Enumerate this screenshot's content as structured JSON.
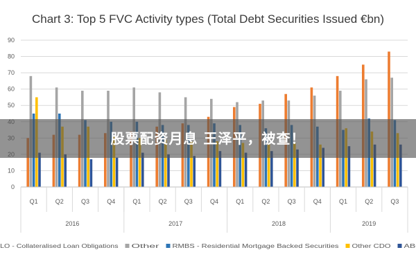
{
  "chart_data": {
    "type": "bar",
    "title": "Chart 3: Top 5 FVC Activity types (Total Debt Securities Issued €bn)",
    "years": [
      {
        "label": "2016",
        "quarters": [
          "Q1",
          "Q2",
          "Q3",
          "Q4"
        ]
      },
      {
        "label": "2017",
        "quarters": [
          "Q1",
          "Q2",
          "Q3",
          "Q4"
        ]
      },
      {
        "label": "2018",
        "quarters": [
          "Q1",
          "Q2",
          "Q3",
          "Q4"
        ]
      },
      {
        "label": "2019",
        "quarters": [
          "Q1",
          "Q2",
          "Q3"
        ]
      }
    ],
    "categories": [
      "Q1",
      "Q2",
      "Q3",
      "Q4",
      "Q1",
      "Q2",
      "Q3",
      "Q4",
      "Q1",
      "Q2",
      "Q3",
      "Q4",
      "Q1",
      "Q2",
      "Q3"
    ],
    "ylim": [
      0,
      90
    ],
    "yticks": [
      0,
      10,
      20,
      30,
      40,
      50,
      60,
      70,
      80,
      90
    ],
    "grid": true,
    "legend_position": "bottom",
    "series": [
      {
        "name": "CLO - Collateralised Loan Obligations",
        "color": "#ED7D31",
        "values": [
          30,
          32,
          32,
          33,
          34,
          37,
          39,
          43,
          49,
          51,
          57,
          61,
          68,
          75,
          83
        ]
      },
      {
        "name": "Other",
        "color": "#A5A5A5",
        "values": [
          68,
          61,
          59,
          59,
          61,
          58,
          55,
          54,
          52,
          53,
          53,
          56,
          59,
          66,
          67
        ]
      },
      {
        "name": "RMBS - Residential Mortgage Backed Securities",
        "color": "#2E75B6",
        "values": [
          45,
          45,
          41,
          40,
          40,
          38,
          38,
          39,
          38,
          36,
          38,
          37,
          35,
          42,
          41
        ]
      },
      {
        "name": "Other CDO",
        "color": "#FFC000",
        "values": [
          55,
          37,
          37,
          31,
          30,
          29,
          28,
          28,
          27,
          27,
          27,
          26,
          36,
          34,
          33
        ]
      },
      {
        "name": "ABCP",
        "color": "#2F5597",
        "values": [
          21,
          20,
          17,
          18,
          21,
          20,
          19,
          22,
          21,
          22,
          23,
          24,
          25,
          26,
          26
        ]
      }
    ]
  },
  "overlay": {
    "text": "股票配资月息 王泽平，被查！"
  }
}
